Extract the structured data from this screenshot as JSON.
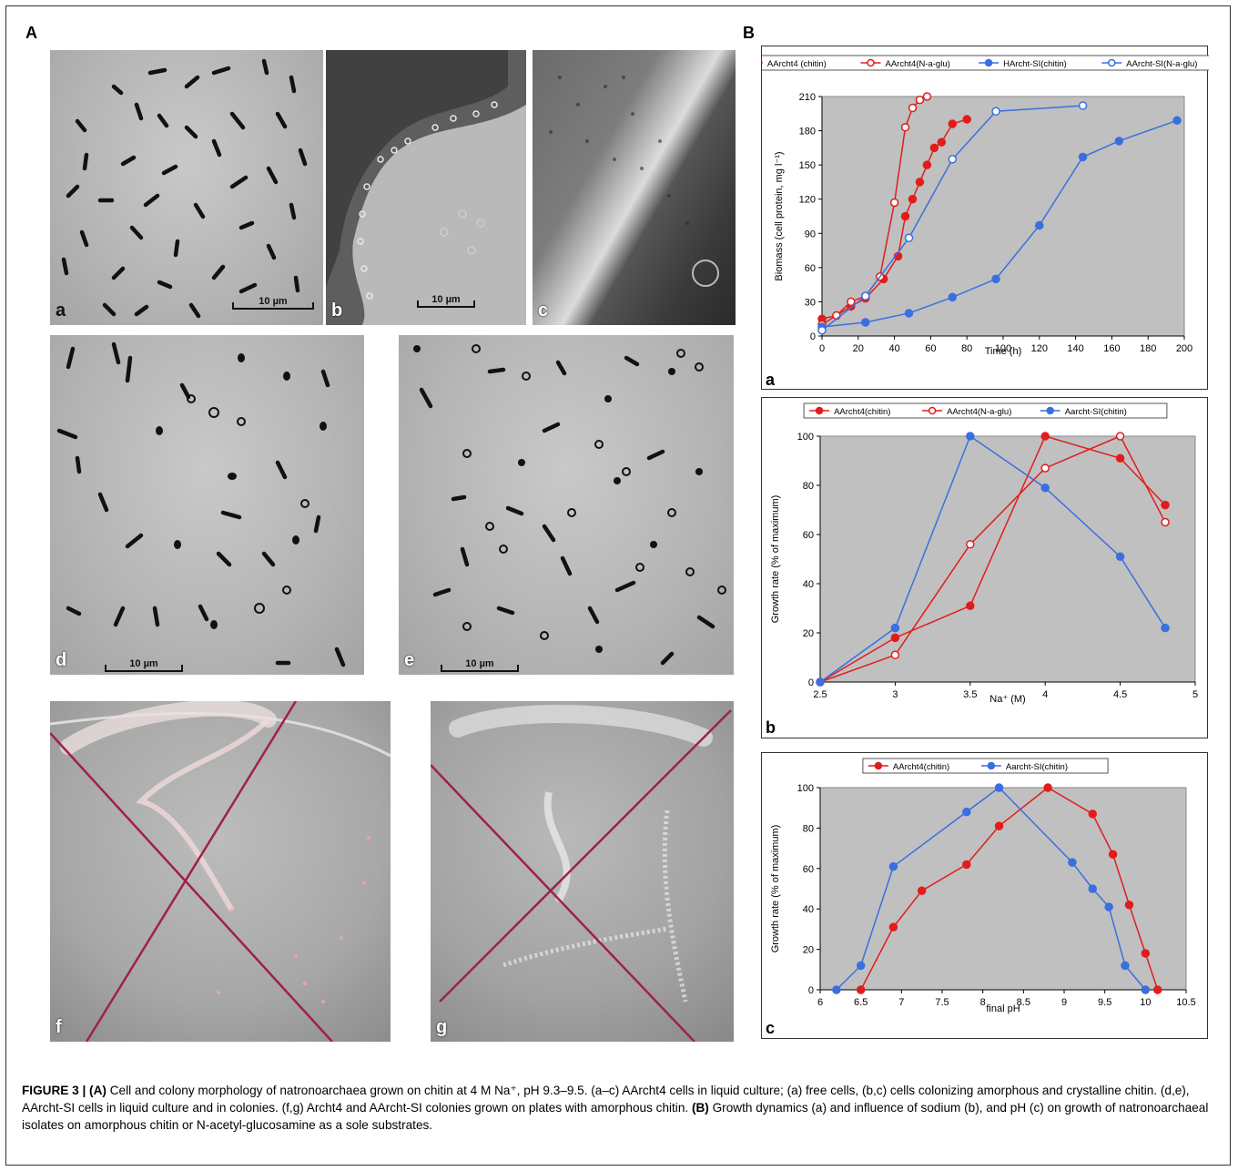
{
  "panel_a_label": "A",
  "panel_b_label": "B",
  "micrographs": [
    {
      "label": "a",
      "scale": "10 µm"
    },
    {
      "label": "b",
      "scale": "10 µm"
    },
    {
      "label": "c",
      "scale": ""
    },
    {
      "label": "d",
      "scale": "10 µm"
    },
    {
      "label": "e",
      "scale": "10 µm"
    },
    {
      "label": "f",
      "scale": ""
    },
    {
      "label": "g",
      "scale": ""
    }
  ],
  "caption": {
    "lead": "FIGURE 3 | (A)",
    "text": " Cell and colony morphology of natronoarchaea grown on chitin at 4 M Na⁺, pH 9.3–9.5. (a–c) AArcht4 cells in liquid culture; (a) free cells, (b,c) cells colonizing amorphous and crystalline chitin. (d,e), AArcht-SI cells in liquid culture and in colonies. (f,g) Archt4 and AArcht-SI colonies grown on plates with amorphous chitin. ",
    "lead2": "(B)",
    "text2": " Growth dynamics (a) and influence of sodium (b), and pH (c) on growth of natronoarchaeal isolates on amorphous chitin or N-acetyl-glucosamine as a sole substrates."
  },
  "colors": {
    "red": "#e21c1c",
    "blue": "#3a6fe0",
    "plot_bg": "#c0c0c0"
  },
  "chart_data": [
    {
      "panel": "a",
      "type": "line",
      "xlabel": "Time (h)",
      "ylabel": "Biomass (cell protein, mg l⁻¹)",
      "xlim": [
        0,
        200
      ],
      "ylim": [
        0,
        210
      ],
      "xticks": [
        0,
        20,
        40,
        60,
        80,
        100,
        120,
        140,
        160,
        180,
        200
      ],
      "yticks": [
        0,
        30,
        60,
        90,
        120,
        150,
        180,
        210
      ],
      "series": [
        {
          "name": "AArcht4 (chitin)",
          "color": "red",
          "filled": true,
          "x": [
            0,
            8,
            16,
            24,
            34,
            42,
            46,
            50,
            54,
            58,
            62,
            66,
            72,
            80
          ],
          "y": [
            15,
            18,
            26,
            33,
            50,
            70,
            105,
            120,
            135,
            150,
            165,
            170,
            186,
            190
          ]
        },
        {
          "name": "AArcht4(N-a-glu)",
          "color": "red",
          "filled": false,
          "x": [
            0,
            8,
            16,
            24,
            32,
            40,
            46,
            50,
            54,
            58
          ],
          "y": [
            10,
            18,
            30,
            35,
            52,
            117,
            183,
            200,
            207,
            210
          ]
        },
        {
          "name": "HArcht-SI(chitin)",
          "color": "blue",
          "filled": true,
          "x": [
            0,
            24,
            48,
            72,
            96,
            120,
            144,
            164,
            196
          ],
          "y": [
            8,
            12,
            20,
            34,
            50,
            97,
            157,
            171,
            189
          ]
        },
        {
          "name": "AArcht-SI(N-a-glu)",
          "color": "blue",
          "filled": false,
          "x": [
            0,
            24,
            48,
            72,
            96,
            144
          ],
          "y": [
            5,
            35,
            86,
            155,
            197,
            202
          ]
        }
      ]
    },
    {
      "panel": "b",
      "type": "line",
      "xlabel": "Na⁺ (M)",
      "ylabel": "Growth rate (% of maximum)",
      "xlim": [
        2.5,
        5
      ],
      "ylim": [
        0,
        100
      ],
      "xticks": [
        2.5,
        3,
        3.5,
        4,
        4.5,
        5
      ],
      "xticklabels": [
        "2.5",
        "3",
        "3.5",
        "4",
        "4.5",
        "5"
      ],
      "yticks": [
        0,
        20,
        40,
        60,
        80,
        100
      ],
      "series": [
        {
          "name": "AArcht4(chitin)",
          "color": "red",
          "filled": true,
          "x": [
            2.5,
            3,
            3.5,
            4,
            4.5,
            4.8
          ],
          "y": [
            0,
            18,
            31,
            100,
            91,
            72
          ]
        },
        {
          "name": "AArcht4(N-a-glu)",
          "color": "red",
          "filled": false,
          "x": [
            2.5,
            3,
            3.5,
            4,
            4.5,
            4.8
          ],
          "y": [
            0,
            11,
            56,
            87,
            100,
            65
          ]
        },
        {
          "name": "Aarcht-SI(chitin)",
          "color": "blue",
          "filled": true,
          "x": [
            2.5,
            3,
            3.5,
            4,
            4.5,
            4.8
          ],
          "y": [
            0,
            22,
            100,
            79,
            51,
            22
          ]
        }
      ]
    },
    {
      "panel": "c",
      "type": "line",
      "xlabel": "final pH",
      "ylabel": "Growth rate (% of maximum)",
      "xlim": [
        6,
        10.5
      ],
      "ylim": [
        0,
        100
      ],
      "xticks": [
        6,
        6.5,
        7,
        7.5,
        8,
        8.5,
        9,
        9.5,
        10,
        10.5
      ],
      "xticklabels": [
        "6",
        "6.5",
        "7",
        "7.5",
        "8",
        "8.5",
        "9",
        "9.5",
        "10",
        "10.5"
      ],
      "yticks": [
        0,
        20,
        40,
        60,
        80,
        100
      ],
      "series": [
        {
          "name": "AArcht4(chitin)",
          "color": "red",
          "filled": true,
          "x": [
            6.5,
            6.9,
            7.25,
            7.8,
            8.2,
            8.8,
            9.35,
            9.6,
            9.8,
            10.0,
            10.15
          ],
          "y": [
            0,
            31,
            49,
            62,
            81,
            100,
            87,
            67,
            42,
            18,
            0
          ]
        },
        {
          "name": "Aarcht-SI(chitin)",
          "color": "blue",
          "filled": true,
          "x": [
            6.2,
            6.5,
            6.9,
            7.8,
            8.2,
            9.1,
            9.35,
            9.55,
            9.75,
            10.0
          ],
          "y": [
            0,
            12,
            61,
            88,
            100,
            63,
            50,
            41,
            12,
            0
          ]
        }
      ]
    }
  ],
  "chart_sublabels": [
    "a",
    "b",
    "c"
  ]
}
